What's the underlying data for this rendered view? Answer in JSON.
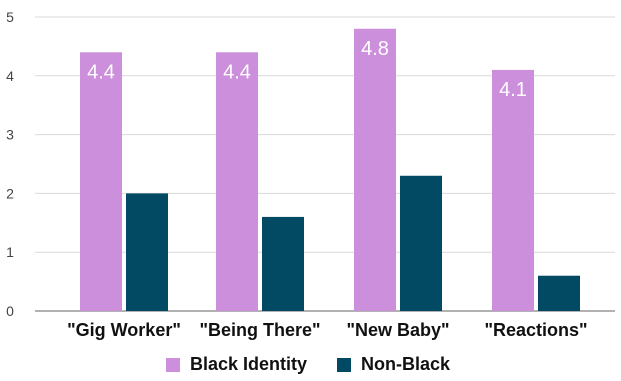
{
  "chart_data": {
    "type": "bar",
    "title": "",
    "xlabel": "",
    "ylabel": "",
    "categories": [
      "\"Gig Worker\"",
      "\"Being There\"",
      "\"New Baby\"",
      "\"Reactions\""
    ],
    "series": [
      {
        "name": "Black Identity",
        "values": [
          4.4,
          4.4,
          4.8,
          4.1
        ],
        "color": "#cc8fdb",
        "data_labels": [
          "4.4",
          "4.4",
          "4.8",
          "4.1"
        ]
      },
      {
        "name": "Non-Black",
        "values": [
          2.0,
          1.6,
          2.3,
          0.6
        ],
        "color": "#024a63"
      }
    ],
    "ylim": [
      0,
      5
    ],
    "yticks": [
      0,
      1,
      2,
      3,
      4,
      5
    ],
    "ytick_labels": [
      "0",
      "1",
      "2",
      "3",
      "4",
      "5"
    ],
    "grid": true,
    "legend_position": "bottom"
  }
}
